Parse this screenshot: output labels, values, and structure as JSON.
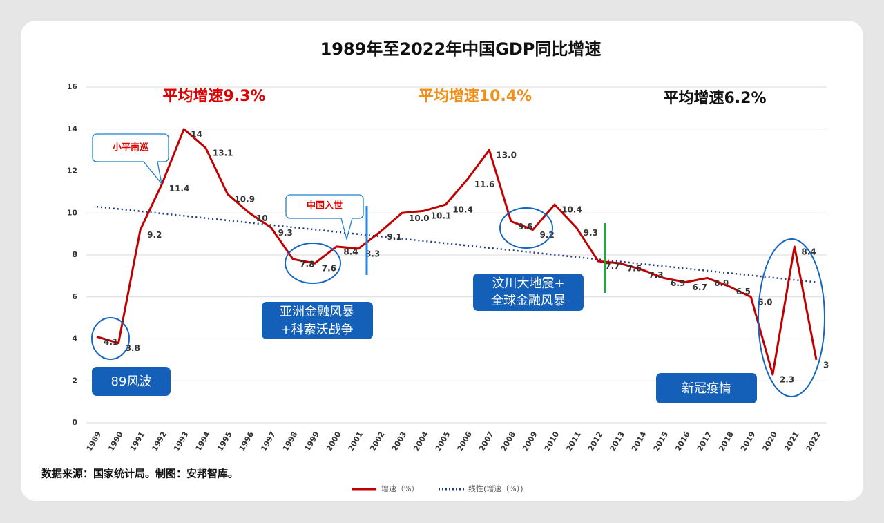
{
  "chart_data": {
    "type": "line",
    "title": "1989年至2022年中国GDP同比增速",
    "categories": [
      "1989",
      "1990",
      "1991",
      "1992",
      "1993",
      "1994",
      "1995",
      "1996",
      "1997",
      "1998",
      "1999",
      "2000",
      "2001",
      "2002",
      "2003",
      "2004",
      "2005",
      "2006",
      "2007",
      "2008",
      "2009",
      "2010",
      "2011",
      "2012",
      "2013",
      "2014",
      "2015",
      "2016",
      "2017",
      "2018",
      "2019",
      "2020",
      "2021",
      "2022"
    ],
    "series": [
      {
        "name": "增速（%）",
        "color": "#c00000",
        "values": [
          4.1,
          3.8,
          9.2,
          11.4,
          14,
          13.1,
          10.9,
          10,
          9.3,
          7.8,
          7.6,
          8.4,
          8.3,
          9.1,
          10.0,
          10.1,
          10.4,
          11.6,
          13.0,
          9.6,
          9.2,
          10.4,
          9.3,
          7.7,
          7.6,
          7.3,
          6.9,
          6.7,
          6.9,
          6.5,
          6.0,
          2.3,
          8.4,
          3
        ],
        "value_labels": [
          "4.1",
          "3.8",
          "9.2",
          "11.4",
          "14",
          "13.1",
          "10.9",
          "10",
          "9.3",
          "7.8",
          "7.6",
          "8.4",
          "8.3",
          "9.1",
          "10.0",
          "10.1",
          "10.4",
          "11.6",
          "13.0",
          "9.6",
          "9.2",
          "10.4",
          "9.3",
          "7.7",
          "7.6",
          "7.3",
          "6.9",
          "6.7",
          "6.9",
          "6.5",
          "6.0",
          "2.3",
          "8.4",
          "3"
        ]
      }
    ],
    "trend": {
      "name": "线性(增速（%）)",
      "color": "#1f3c88",
      "values": [
        10.3,
        6.7
      ]
    },
    "ylim": [
      0,
      16
    ],
    "yticks": [
      0,
      2,
      4,
      6,
      8,
      10,
      12,
      14,
      16
    ],
    "grid": true,
    "legend": "bottom",
    "annotations": {
      "avg_1": "平均增速9.3%",
      "avg_2": "平均增速10.4%",
      "avg_3": "平均增速6.2%",
      "tour": "小平南巡",
      "wto": "中国入世",
      "e1989": "89风波",
      "e1997": [
        "亚洲金融风暴",
        "+科索沃战争"
      ],
      "e2008": [
        "汶川大地震+",
        "全球金融风暴"
      ],
      "covid": "新冠疫情"
    },
    "source": "数据来源：国家统计局。制图：安邦智库。"
  }
}
